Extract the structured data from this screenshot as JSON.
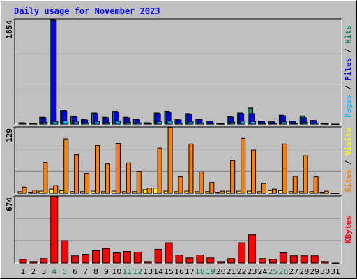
{
  "title": "Daily usage for November 2023",
  "categories": [
    "1",
    "2",
    "3",
    "4",
    "5",
    "6",
    "7",
    "8",
    "9",
    "10",
    "11",
    "12",
    "13",
    "14",
    "15",
    "16",
    "17",
    "18",
    "19",
    "20",
    "21",
    "22",
    "23",
    "24",
    "25",
    "26",
    "27",
    "28",
    "29",
    "30",
    "31"
  ],
  "category_colors": [
    "#000000",
    "#000000",
    "#000000",
    "#00805c",
    "#00805c",
    "#000000",
    "#000000",
    "#000000",
    "#000000",
    "#000000",
    "#00805c",
    "#00805c",
    "#000000",
    "#000000",
    "#000000",
    "#000000",
    "#000000",
    "#00805c",
    "#00805c",
    "#000000",
    "#000000",
    "#000000",
    "#000000",
    "#000000",
    "#00805c",
    "#00805c",
    "#000000",
    "#000000",
    "#000000",
    "#000000",
    "#000000"
  ],
  "legend_separator": " / ",
  "chart_data": [
    {
      "type": "bar",
      "ylim": [
        0,
        1654
      ],
      "yticks": [
        1654
      ],
      "series": [
        {
          "name": "Pages",
          "color": "#00c0ff",
          "values": [
            8,
            5,
            30,
            40,
            50,
            35,
            20,
            40,
            25,
            45,
            30,
            20,
            6,
            40,
            45,
            15,
            35,
            20,
            12,
            3,
            30,
            45,
            40,
            12,
            10,
            35,
            12,
            25,
            15,
            3,
            0
          ]
        },
        {
          "name": "Files",
          "color": "#0000ff",
          "values": [
            20,
            12,
            100,
            1640,
            210,
            120,
            65,
            165,
            100,
            190,
            100,
            75,
            20,
            165,
            190,
            65,
            155,
            75,
            45,
            12,
            110,
            165,
            165,
            45,
            35,
            130,
            45,
            100,
            55,
            12,
            0
          ]
        },
        {
          "name": "Hits",
          "color": "#00805c",
          "values": [
            22,
            13,
            108,
            1654,
            225,
            128,
            70,
            176,
            108,
            203,
            108,
            80,
            22,
            176,
            203,
            70,
            166,
            80,
            48,
            13,
            118,
            176,
            255,
            48,
            37,
            140,
            48,
            130,
            59,
            13,
            0
          ]
        }
      ]
    },
    {
      "type": "bar",
      "ylim": [
        0,
        129
      ],
      "yticks": [
        129
      ],
      "series": [
        {
          "name": "Sites",
          "color": "#ff8000",
          "values": [
            12,
            6,
            61,
            15,
            107,
            76,
            39,
            94,
            58,
            98,
            60,
            43,
            10,
            89,
            129,
            32,
            97,
            42,
            21,
            4,
            64,
            108,
            85,
            19,
            8,
            97,
            33,
            74,
            32,
            4,
            0
          ]
        },
        {
          "name": "Visits",
          "color": "#ffff00",
          "values": [
            3,
            2,
            4,
            8,
            5,
            3,
            3,
            4,
            3,
            4,
            3,
            3,
            7,
            10,
            4,
            3,
            4,
            3,
            3,
            2,
            4,
            4,
            4,
            3,
            5,
            5,
            3,
            3,
            3,
            2,
            0
          ]
        }
      ]
    },
    {
      "type": "bar",
      "ylim": [
        0,
        674
      ],
      "yticks": [
        674
      ],
      "series": [
        {
          "name": "KBytes",
          "color": "#ff0000",
          "values": [
            37,
            15,
            44,
            674,
            227,
            73,
            88,
            125,
            147,
            103,
            117,
            110,
            15,
            139,
            205,
            81,
            51,
            81,
            51,
            15,
            44,
            205,
            286,
            44,
            37,
            103,
            73,
            73,
            73,
            15,
            0
          ]
        }
      ]
    }
  ]
}
